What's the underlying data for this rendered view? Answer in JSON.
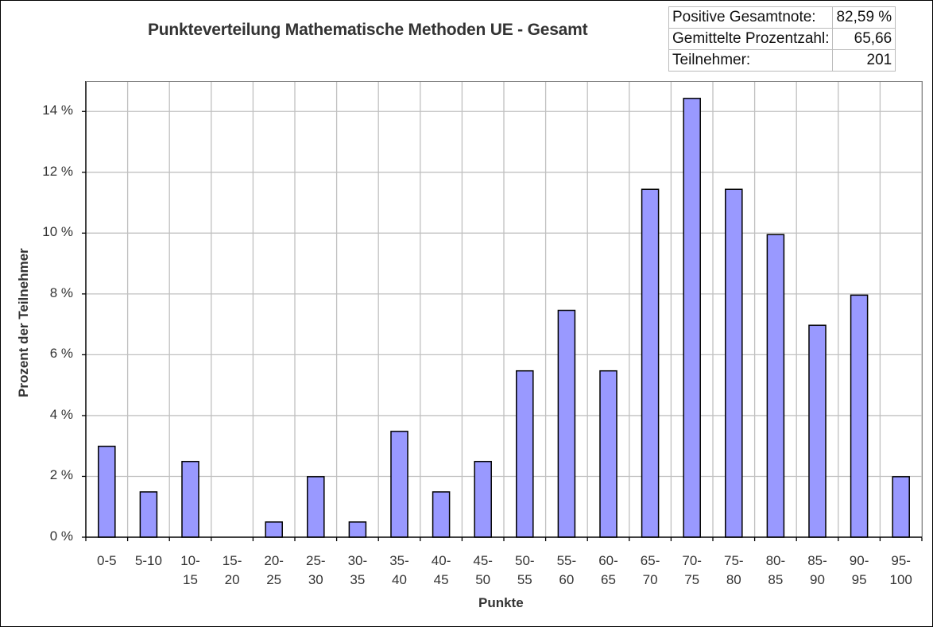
{
  "title": "Punkteverteilung Mathematische Methoden UE - Gesamt",
  "stats": [
    {
      "label": "Positive Gesamtnote:",
      "value": "82,59 %"
    },
    {
      "label": "Gemittelte Prozentzahl:",
      "value": "65,66"
    },
    {
      "label": "Teilnehmer:",
      "value": "201"
    }
  ],
  "colors": {
    "bar_fill": "#9999ff",
    "bar_stroke": "#000000",
    "grid": "#c0c0c0"
  },
  "chart_data": {
    "type": "bar",
    "title": "Punkteverteilung Mathematische Methoden UE - Gesamt",
    "xlabel": "Punkte",
    "ylabel": "Prozent der Teilnehmer",
    "categories": [
      "0-5",
      "5-10",
      "10-15",
      "15-20",
      "20-25",
      "25-30",
      "30-35",
      "35-40",
      "40-45",
      "45-50",
      "50-55",
      "55-60",
      "60-65",
      "65-70",
      "70-75",
      "75-80",
      "80-85",
      "85-90",
      "90-95",
      "95-100"
    ],
    "category_lines": [
      [
        "0-5",
        ""
      ],
      [
        "5-10",
        ""
      ],
      [
        "10-",
        "15"
      ],
      [
        "15-",
        "20"
      ],
      [
        "20-",
        "25"
      ],
      [
        "25-",
        "30"
      ],
      [
        "30-",
        "35"
      ],
      [
        "35-",
        "40"
      ],
      [
        "40-",
        "45"
      ],
      [
        "45-",
        "50"
      ],
      [
        "50-",
        "55"
      ],
      [
        "55-",
        "60"
      ],
      [
        "60-",
        "65"
      ],
      [
        "65-",
        "70"
      ],
      [
        "70-",
        "75"
      ],
      [
        "75-",
        "80"
      ],
      [
        "80-",
        "85"
      ],
      [
        "85-",
        "90"
      ],
      [
        "90-",
        "95"
      ],
      [
        "95-",
        "100"
      ]
    ],
    "values": [
      2.99,
      1.49,
      2.49,
      0,
      0.5,
      1.99,
      0.5,
      3.48,
      1.49,
      2.49,
      5.47,
      7.46,
      5.47,
      11.44,
      14.43,
      11.44,
      9.95,
      6.97,
      7.96,
      1.99
    ],
    "ylim": [
      0,
      15
    ],
    "yticks": [
      0,
      2,
      4,
      6,
      8,
      10,
      12,
      14
    ],
    "ytick_labels": [
      "0 %",
      "2 %",
      "4 %",
      "6 %",
      "8 %",
      "10 %",
      "12 %",
      "14 %"
    ],
    "grid": true,
    "legend": null
  }
}
